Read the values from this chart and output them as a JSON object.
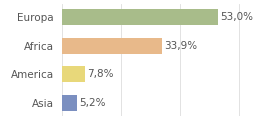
{
  "categories": [
    "Europa",
    "Africa",
    "America",
    "Asia"
  ],
  "values": [
    53.0,
    33.9,
    7.8,
    5.2
  ],
  "labels": [
    "53,0%",
    "33,9%",
    "7,8%",
    "5,2%"
  ],
  "bar_colors": [
    "#a8bc8a",
    "#e8b98a",
    "#e8d87a",
    "#7b8fc0"
  ],
  "background_color": "#ffffff",
  "xlim": [
    0,
    72
  ],
  "bar_height": 0.55,
  "label_fontsize": 7.5,
  "tick_fontsize": 7.5,
  "grid_color": "#dddddd",
  "text_color": "#555555"
}
